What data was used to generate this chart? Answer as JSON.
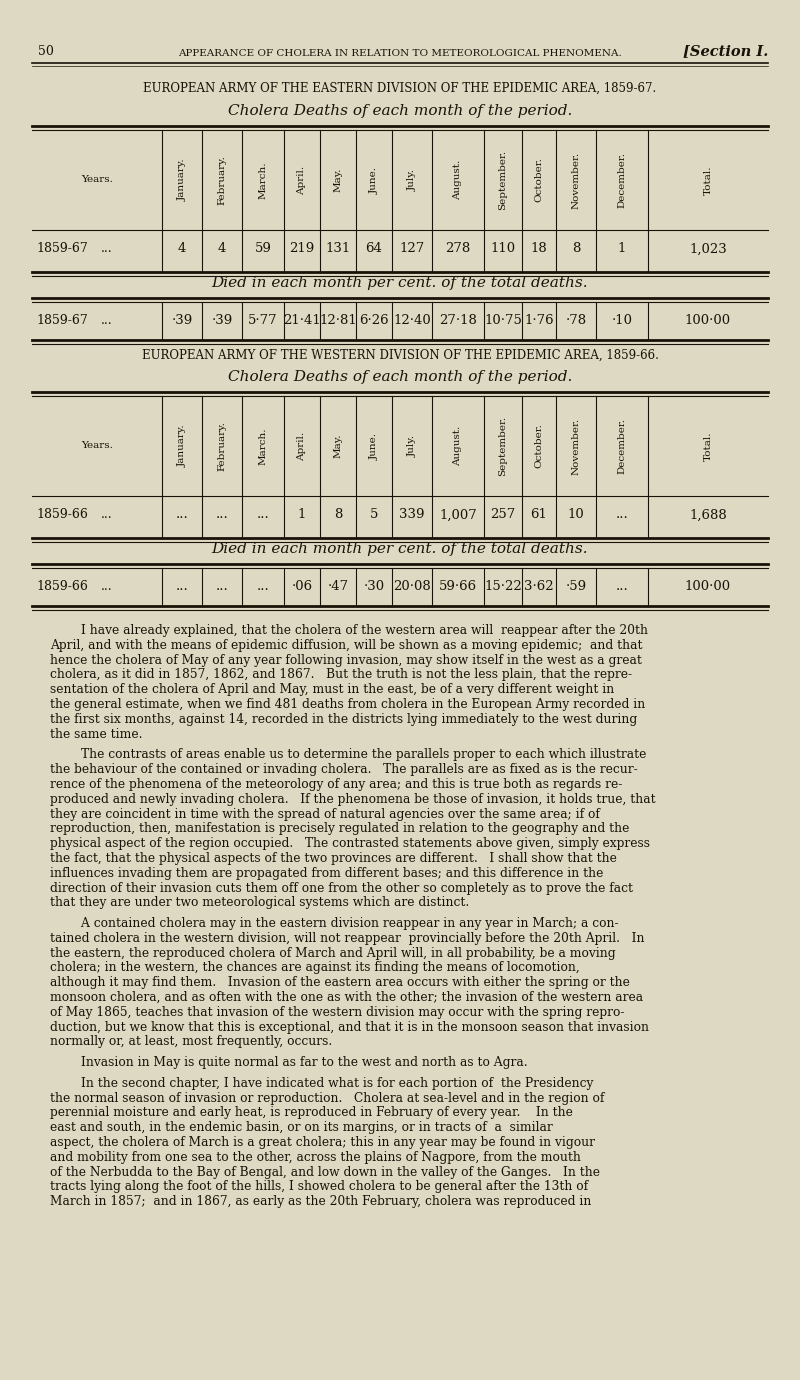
{
  "bg_color": "#ddd9c3",
  "text_color": "#1a1208",
  "page_number": "50",
  "header_center": "APPEARANCE OF CHOLERA IN RELATION TO METEOROLOGICAL PHENOMENA.",
  "header_right": "[Section I.",
  "table1_title": "EUROPEAN ARMY OF THE EASTERN DIVISION OF THE EPIDEMIC AREA, 1859-67.",
  "table1_subtitle": "Cholera Deaths of each month of the period.",
  "table1_pct_subtitle": "Died in each month per cent. of the total deaths.",
  "table1_row": [
    "1859-67",
    "...",
    "4",
    "4",
    "59",
    "219",
    "131",
    "64",
    "127",
    "278",
    "110",
    "18",
    "8",
    "1",
    "1,023"
  ],
  "table1_pct_row": [
    "1859-67",
    "...",
    "·39",
    "·39",
    "5·77",
    "21·41",
    "12·81",
    "6·26",
    "12·40",
    "27·18",
    "10·75",
    "1·76",
    "·78",
    "·10",
    "100·00"
  ],
  "table2_title": "EUROPEAN ARMY OF THE WESTERN DIVISION OF THE EPIDEMIC AREA, 1859-66.",
  "table2_subtitle": "Cholera Deaths of each month of the period.",
  "table2_pct_subtitle": "Died in each month per cent. of the total deaths.",
  "table2_row": [
    "1859-66",
    "...",
    "...",
    "...",
    "...",
    "1",
    "8",
    "5",
    "339",
    "1,007",
    "257",
    "61",
    "10",
    "...",
    "1,688"
  ],
  "table2_pct_row": [
    "1859-66",
    "...",
    "...",
    "...",
    "...",
    "·06",
    "·47",
    "·30",
    "20·08",
    "59·66",
    "15·22",
    "3·62",
    "·59",
    "...",
    "100·00"
  ],
  "col_headers": [
    "Years.",
    "January.",
    "February.",
    "March.",
    "April.",
    "May.",
    "June.",
    "July.",
    "August.",
    "September.",
    "October.",
    "November.",
    "December.",
    "Total."
  ],
  "body_lines": [
    "        I have already explained, that the cholera of the western area will  reappear after the 20th",
    "April, and with the means of epidemic diffusion, will be shown as a moving epidemic;  and that",
    "hence the cholera of May of any year following invasion, may show itself in the west as a great",
    "cholera, as it did in 1857, 1862, and 1867.   But the truth is not the less plain, that the repre-",
    "sentation of the cholera of April and May, must in the east, be of a very different weight in",
    "the general estimate, when we find 481 deaths from cholera in the European Army recorded in",
    "the first six months, against 14, recorded in the districts lying immediately to the west during",
    "the same time.",
    "",
    "        The contrasts of areas enable us to determine the parallels proper to each which illustrate",
    "the behaviour of the contained or invading cholera.   The parallels are as fixed as is the recur-",
    "rence of the phenomena of the meteorology of any area; and this is true both as regards re-",
    "produced and newly invading cholera.   If the phenomena be those of invasion, it holds true, that",
    "they are coincident in time with the spread of natural agencies over the same area; if of",
    "reproduction, then, manifestation is precisely regulated in relation to the geography and the",
    "physical aspect of the region occupied.   The contrasted statements above given, simply express",
    "the fact, that the physical aspects of the two provinces are different.   I shall show that the",
    "influences invading them are propagated from different bases; and this difference in the",
    "direction of their invasion cuts them off one from the other so completely as to prove the fact",
    "that they are under two meteorological systems which are distinct.",
    "",
    "        A contained cholera may in the eastern division reappear in any year in March; a con-",
    "tained cholera in the western division, will not reappear  provincially before the 20th April.   In",
    "the eastern, the reproduced cholera of March and April will, in all probability, be a moving",
    "cholera; in the western, the chances are against its finding the means of locomotion,",
    "although it may find them.   Invasion of the eastern area occurs with either the spring or the",
    "monsoon cholera, and as often with the one as with the other; the invasion of the western area",
    "of May 1865, teaches that invasion of the western division may occur with the spring repro-",
    "duction, but we know that this is exceptional, and that it is in the monsoon season that invasion",
    "normally or, at least, most frequently, occurs.",
    "",
    "        Invasion in May is quite normal as far to the west and north as to Agra.",
    "",
    "        In the second chapter, I have indicated what is for each portion of  the Presidency",
    "the normal season of invasion or reproduction.   Cholera at sea-level and in the region of",
    "perennial moisture and early heat, is reproduced in February of every year.    In the",
    "east and south, in the endemic basin, or on its margins, or in tracts of  a  similar",
    "aspect, the cholera of March is a great cholera; this in any year may be found in vigour",
    "and mobility from one sea to the other, across the plains of Nagpore, from the mouth",
    "of the Nerbudda to the Bay of Bengal, and low down in the valley of the Ganges.   In the",
    "tracts lying along the foot of the hills, I showed cholera to be general after the 13th of",
    "March in 1857;  and in 1867, as early as the 20th February, cholera was reproduced in"
  ]
}
